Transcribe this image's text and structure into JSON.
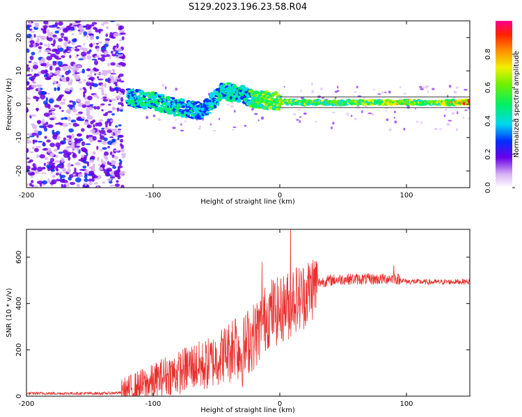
{
  "title": "S129.2023.196.23.58.R04",
  "chart_data": [
    {
      "type": "heatmap",
      "xlabel": "Height of straight line (km)",
      "ylabel": "Frequency (Hz)",
      "xlim": [
        -200,
        150
      ],
      "ylim": [
        -25,
        25
      ],
      "xticks": [
        -200,
        -100,
        0,
        100
      ],
      "yticks": [
        -20,
        -10,
        0,
        10,
        20
      ],
      "colorbar": {
        "label": "Normalized spectral amplitude",
        "range": [
          0,
          1
        ],
        "ticks": [
          "0.0",
          "0.2",
          "0.4",
          "0.6",
          "0.8"
        ],
        "tick_values": [
          0.0,
          0.2,
          0.4,
          0.6,
          0.8
        ]
      },
      "ridge": [
        {
          "x": -120,
          "f": 2.0,
          "amp": 0.35
        },
        {
          "x": -100,
          "f": 1.0,
          "amp": 0.4
        },
        {
          "x": -80,
          "f": -1.0,
          "amp": 0.35
        },
        {
          "x": -60,
          "f": -2.0,
          "amp": 0.3
        },
        {
          "x": -45,
          "f": 4.0,
          "amp": 0.35
        },
        {
          "x": -30,
          "f": 3.0,
          "amp": 0.35
        },
        {
          "x": -20,
          "f": 1.5,
          "amp": 0.45
        },
        {
          "x": 0,
          "f": 0.8,
          "amp": 0.55
        },
        {
          "x": 20,
          "f": 0.5,
          "amp": 0.5
        },
        {
          "x": 60,
          "f": 0.5,
          "amp": 0.5
        },
        {
          "x": 90,
          "f": 0.6,
          "amp": 0.6
        },
        {
          "x": 120,
          "f": 0.5,
          "amp": 0.5
        },
        {
          "x": 150,
          "f": 0.6,
          "amp": 0.7
        }
      ],
      "noise_region": [
        -200,
        -123
      ]
    },
    {
      "type": "line",
      "xlabel": "Height of straight line (km)",
      "ylabel": "SNR (10 * v/v)",
      "xlim": [
        -200,
        150
      ],
      "ylim": [
        0,
        720
      ],
      "xticks": [
        -200,
        -100,
        0,
        100
      ],
      "yticks": [
        0,
        200,
        400,
        600
      ],
      "color": "#e8302e",
      "series": [
        {
          "name": "SNR",
          "x": [
            -200,
            -180,
            -160,
            -140,
            -125,
            -110,
            -100,
            -90,
            -80,
            -70,
            -60,
            -50,
            -40,
            -35,
            -30,
            -25,
            -20,
            -15,
            -10,
            -5,
            0,
            5,
            8,
            10,
            15,
            20,
            25,
            30,
            40,
            50,
            60,
            70,
            80,
            90,
            100,
            120,
            150
          ],
          "values": [
            12,
            12,
            12,
            12,
            15,
            45,
            60,
            90,
            100,
            130,
            130,
            160,
            200,
            230,
            180,
            240,
            260,
            300,
            350,
            370,
            360,
            400,
            380,
            430,
            420,
            440,
            470,
            490,
            500,
            505,
            505,
            505,
            505,
            510,
            495,
            492,
            495
          ]
        }
      ],
      "peaks": [
        {
          "x": -35,
          "value": 335
        },
        {
          "x": -14,
          "value": 580
        },
        {
          "x": 8.5,
          "value": 720
        },
        {
          "x": 90,
          "value": 565
        }
      ]
    }
  ]
}
